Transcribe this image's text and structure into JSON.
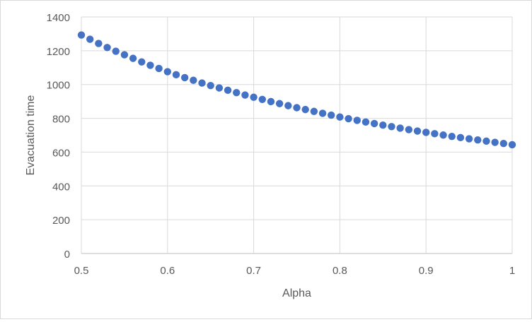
{
  "chart_data": {
    "type": "scatter",
    "title": "",
    "xlabel": "Alpha",
    "ylabel": "Evacuation time",
    "xlim": [
      0.5,
      1.0
    ],
    "ylim": [
      0,
      1400
    ],
    "x_ticks": [
      0.5,
      0.6,
      0.7,
      0.8,
      0.9,
      1.0
    ],
    "x_tick_labels": [
      "0.5",
      "0.6",
      "0.7",
      "0.8",
      "0.9",
      "1"
    ],
    "y_ticks": [
      0,
      200,
      400,
      600,
      800,
      1000,
      1200,
      1400
    ],
    "y_tick_labels": [
      "0",
      "200",
      "400",
      "600",
      "800",
      "1000",
      "1200",
      "1400"
    ],
    "grid": true,
    "legend": "none",
    "marker_color": "#4472C4",
    "series": [
      {
        "x": [
          0.5,
          0.51,
          0.52,
          0.53,
          0.54,
          0.55,
          0.56,
          0.57,
          0.58,
          0.59,
          0.6,
          0.61,
          0.62,
          0.63,
          0.64,
          0.65,
          0.66,
          0.67,
          0.68,
          0.69,
          0.7,
          0.71,
          0.72,
          0.73,
          0.74,
          0.75,
          0.76,
          0.77,
          0.78,
          0.79,
          0.8,
          0.81,
          0.82,
          0.83,
          0.84,
          0.85,
          0.86,
          0.87,
          0.88,
          0.89,
          0.9,
          0.91,
          0.92,
          0.93,
          0.94,
          0.95,
          0.96,
          0.97,
          0.98,
          0.99,
          1.0
        ],
        "y": [
          1293,
          1268,
          1243,
          1219,
          1197,
          1176,
          1155,
          1134,
          1114,
          1095,
          1076,
          1058,
          1041,
          1025,
          1009,
          994,
          980,
          966,
          952,
          938,
          925,
          912,
          899,
          887,
          875,
          863,
          852,
          841,
          830,
          819,
          808,
          798,
          788,
          778,
          769,
          760,
          751,
          742,
          733,
          725,
          717,
          709,
          701,
          693,
          686,
          679,
          672,
          665,
          658,
          651,
          644
        ]
      }
    ]
  }
}
